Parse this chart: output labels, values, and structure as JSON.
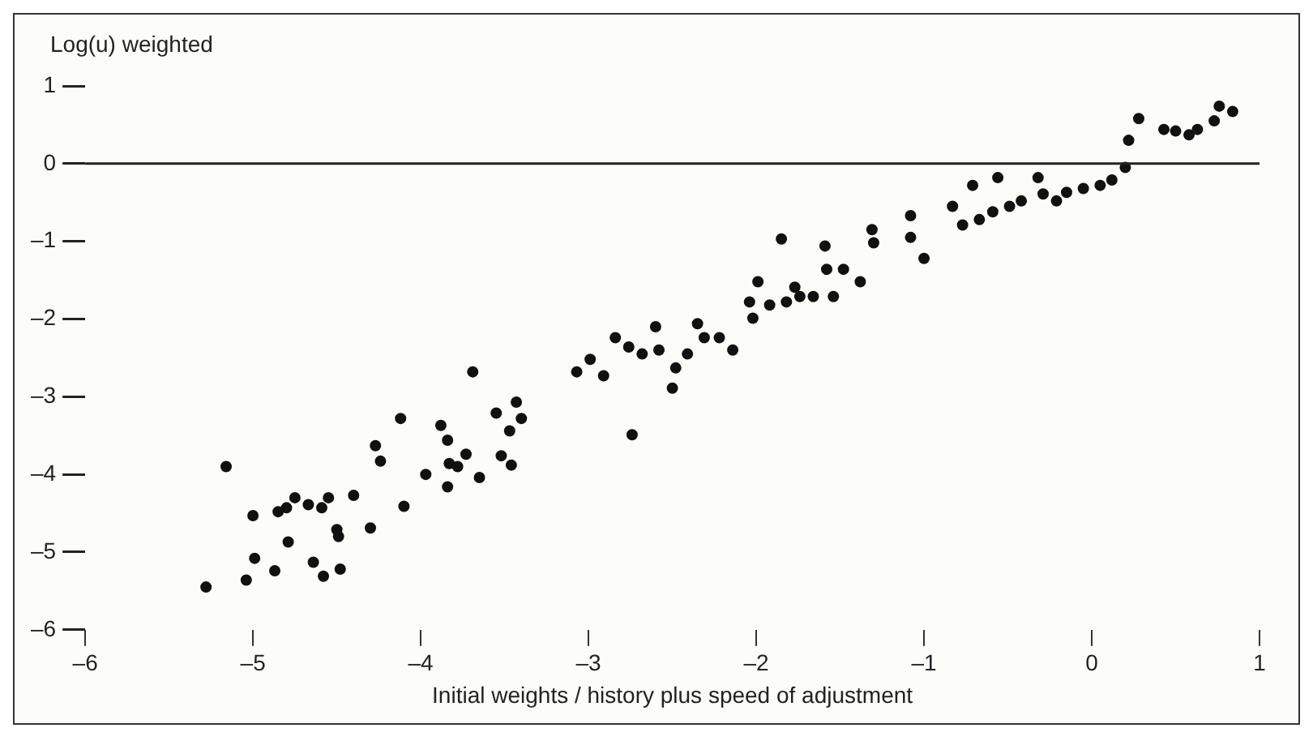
{
  "chart_data": {
    "type": "scatter",
    "xlabel": "Initial weights / history plus speed of adjustment",
    "ylabel": "Log(u) weighted",
    "xlim": [
      -6,
      1
    ],
    "ylim": [
      -6,
      1
    ],
    "xticks": [
      {
        "value": -6,
        "label": "–6"
      },
      {
        "value": -5,
        "label": "–5"
      },
      {
        "value": -4,
        "label": "–4"
      },
      {
        "value": -3,
        "label": "–3"
      },
      {
        "value": -2,
        "label": "–2"
      },
      {
        "value": -1,
        "label": "–1"
      },
      0,
      1
    ],
    "yticks": [
      {
        "value": -6,
        "label": "–6"
      },
      {
        "value": -5,
        "label": "–5"
      },
      {
        "value": -4,
        "label": "–4"
      },
      {
        "value": -3,
        "label": "–3"
      },
      {
        "value": -2,
        "label": "–2"
      },
      {
        "value": -1,
        "label": "–1"
      },
      0,
      1
    ],
    "grid": false,
    "legend": false,
    "marker": "circle",
    "ref_lines": [
      {
        "axis": "y",
        "value": 0
      }
    ],
    "series": [
      {
        "color": "#111111",
        "x": [
          -5.16,
          -5.28,
          -5.04,
          -4.99,
          -4.87,
          -4.79,
          -5.0,
          -4.85,
          -4.8,
          -4.75,
          -4.67,
          -4.59,
          -4.55,
          -4.64,
          -4.58,
          -4.48,
          -4.5,
          -4.49,
          -4.4,
          -4.3,
          -4.27,
          -4.24,
          -4.12,
          -4.1,
          -3.97,
          -3.88,
          -3.84,
          -3.84,
          -3.83,
          -3.78,
          -3.73,
          -3.65,
          -3.69,
          -3.55,
          -3.43,
          -3.4,
          -3.47,
          -3.52,
          -3.46,
          -3.07,
          -2.99,
          -2.91,
          -2.74,
          -2.5,
          -2.84,
          -2.76,
          -2.6,
          -2.58,
          -2.35,
          -2.31,
          -2.22,
          -2.04,
          -2.02,
          -1.99,
          -1.85,
          -1.82,
          -1.74,
          -1.66,
          -1.59,
          -1.58,
          -1.54,
          -1.48,
          -1.38,
          -1.31,
          -1.3,
          -1.08,
          -1.08,
          -1.0,
          -0.83,
          -0.77,
          -0.71,
          -0.56,
          -0.67,
          -0.59,
          -0.49,
          -0.42,
          -0.32,
          -0.29,
          -0.21,
          -0.15,
          -0.05,
          0.05,
          0.12,
          0.2,
          0.22,
          0.28,
          0.43,
          0.5,
          0.58,
          0.63,
          0.73,
          0.76,
          0.84,
          -2.68,
          -2.48,
          -2.41,
          -2.14,
          -1.92,
          -1.77
        ],
        "values": [
          -3.9,
          -5.45,
          -5.36,
          -5.08,
          -5.24,
          -4.87,
          -4.53,
          -4.48,
          -4.43,
          -4.3,
          -4.39,
          -4.43,
          -4.3,
          -5.13,
          -5.31,
          -5.22,
          -4.71,
          -4.8,
          -4.27,
          -4.69,
          -3.63,
          -3.83,
          -3.28,
          -4.41,
          -4.0,
          -3.37,
          -3.56,
          -4.16,
          -3.86,
          -3.9,
          -3.74,
          -4.04,
          -2.68,
          -3.21,
          -3.07,
          -3.28,
          -3.44,
          -3.76,
          -3.88,
          -2.68,
          -2.52,
          -2.73,
          -3.49,
          -2.89,
          -2.24,
          -2.36,
          -2.1,
          -2.4,
          -2.06,
          -2.24,
          -2.24,
          -1.78,
          -1.99,
          -1.52,
          -0.97,
          -1.78,
          -1.71,
          -1.71,
          -1.06,
          -1.36,
          -1.71,
          -1.36,
          -1.52,
          -0.85,
          -1.02,
          -0.67,
          -0.95,
          -1.22,
          -0.55,
          -0.79,
          -0.28,
          -0.18,
          -0.72,
          -0.62,
          -0.55,
          -0.48,
          -0.18,
          -0.39,
          -0.48,
          -0.37,
          -0.32,
          -0.28,
          -0.21,
          -0.05,
          0.3,
          0.58,
          0.44,
          0.42,
          0.37,
          0.44,
          0.55,
          0.74,
          0.67,
          -2.45,
          -2.63,
          -2.45,
          -2.4,
          -1.82,
          -1.59
        ]
      }
    ]
  }
}
